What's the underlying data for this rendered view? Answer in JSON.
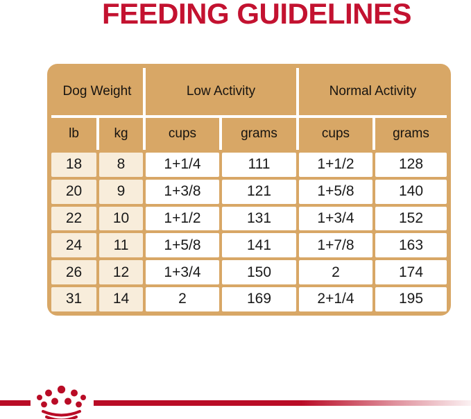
{
  "title": "FEEDING GUIDELINES",
  "colors": {
    "title_red": "#c31230",
    "brand_red": "#b90c26",
    "header_tan": "#d8a766",
    "weight_cell_cream": "#f8eddb",
    "body_cell_white": "#ffffff",
    "text_dark": "#191919"
  },
  "table": {
    "groups": [
      {
        "label": "Dog Weight"
      },
      {
        "label": "Low Activity"
      },
      {
        "label": "Normal Activity"
      }
    ],
    "subheaders": [
      "lb",
      "kg",
      "cups",
      "grams",
      "cups",
      "grams"
    ],
    "rows": [
      [
        "18",
        "8",
        "1+1/4",
        "111",
        "1+1/2",
        "128"
      ],
      [
        "20",
        "9",
        "1+3/8",
        "121",
        "1+5/8",
        "140"
      ],
      [
        "22",
        "10",
        "1+1/2",
        "131",
        "1+3/4",
        "152"
      ],
      [
        "24",
        "11",
        "1+5/8",
        "141",
        "1+7/8",
        "163"
      ],
      [
        "26",
        "12",
        "1+3/4",
        "150",
        "2",
        "174"
      ],
      [
        "31",
        "14",
        "2",
        "169",
        "2+1/4",
        "195"
      ]
    ]
  },
  "chart_data": {
    "type": "table",
    "title": "FEEDING GUIDELINES",
    "column_groups": [
      "Dog Weight",
      "Low Activity",
      "Normal Activity"
    ],
    "columns": [
      "lb",
      "kg",
      "cups (low)",
      "grams (low)",
      "cups (normal)",
      "grams (normal)"
    ],
    "rows": [
      [
        "18",
        "8",
        "1+1/4",
        "111",
        "1+1/2",
        "128"
      ],
      [
        "20",
        "9",
        "1+3/8",
        "121",
        "1+5/8",
        "140"
      ],
      [
        "22",
        "10",
        "1+1/2",
        "131",
        "1+3/4",
        "152"
      ],
      [
        "24",
        "11",
        "1+5/8",
        "141",
        "1+7/8",
        "163"
      ],
      [
        "26",
        "12",
        "1+3/4",
        "150",
        "2",
        "174"
      ],
      [
        "31",
        "14",
        "2",
        "169",
        "2+1/4",
        "195"
      ]
    ]
  },
  "footer": {
    "logo": "royal-canin-crown-logo"
  }
}
